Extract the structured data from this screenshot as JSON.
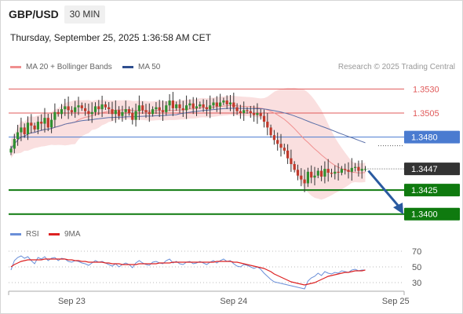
{
  "header": {
    "symbol": "GBP/USD",
    "timeframe": "30 MIN",
    "datetime": "Thursday, September 25, 2025 1:36:58 AM CET",
    "copyright": "Research © 2025 Trading Central"
  },
  "colors": {
    "resistance": "#e05a5a",
    "pivot": "#4a7bd0",
    "support": "#0f7a0f",
    "current": "#333333",
    "bollinger_fill": "#fadbdb",
    "ma20": "#f08f8f",
    "ma50": "#5a6fa8",
    "bull_candle": "#2f8f2f",
    "bear_candle": "#c0392b",
    "arrow": "#2a5aa0",
    "rsi": "#6a8fd8",
    "rsi_ma": "#dd2222"
  },
  "chart_data": [
    {
      "type": "candlestick",
      "legend": [
        {
          "label": "MA 20 + Bollinger Bands",
          "color": "#f08f8f"
        },
        {
          "label": "MA 50",
          "color": "#2f4f8f"
        }
      ],
      "ylim": [
        1.339,
        1.3545
      ],
      "x_ticks": [
        {
          "label": "Sep 23",
          "index": 18
        },
        {
          "label": "Sep 24",
          "index": 66
        },
        {
          "label": "Sep 25",
          "index": 114
        }
      ],
      "levels": [
        {
          "label": "1.3530",
          "value": 1.353,
          "kind": "resistance"
        },
        {
          "label": "1.3505",
          "value": 1.3505,
          "kind": "resistance"
        },
        {
          "label": "1.3480",
          "value": 1.348,
          "kind": "pivot"
        },
        {
          "label": "1.3447",
          "value": 1.3447,
          "kind": "current"
        },
        {
          "label": "1.3425",
          "value": 1.3425,
          "kind": "support"
        },
        {
          "label": "1.3400",
          "value": 1.34,
          "kind": "support"
        }
      ],
      "forecast_arrow": {
        "from": 1.3445,
        "to": 1.3403
      },
      "closes": [
        1.3468,
        1.3478,
        1.3485,
        1.349,
        1.3483,
        1.3495,
        1.3492,
        1.3488,
        1.3496,
        1.3494,
        1.35,
        1.349,
        1.3498,
        1.3506,
        1.3504,
        1.3509,
        1.3512,
        1.3508,
        1.3506,
        1.3511,
        1.3513,
        1.351,
        1.3507,
        1.3504,
        1.3506,
        1.3512,
        1.3509,
        1.3514,
        1.3511,
        1.3509,
        1.3504,
        1.3508,
        1.3502,
        1.3506,
        1.3509,
        1.3505,
        1.3498,
        1.3507,
        1.3513,
        1.3508,
        1.3506,
        1.3504,
        1.3509,
        1.3511,
        1.3508,
        1.3506,
        1.3513,
        1.3518,
        1.351,
        1.3514,
        1.351,
        1.3508,
        1.3513,
        1.3515,
        1.351,
        1.3512,
        1.3514,
        1.3511,
        1.3509,
        1.3513,
        1.3516,
        1.3512,
        1.3516,
        1.3518,
        1.3514,
        1.3516,
        1.3511,
        1.3507,
        1.3505,
        1.3508,
        1.3507,
        1.3505,
        1.3503,
        1.3505,
        1.3502,
        1.3496,
        1.349,
        1.3482,
        1.3477,
        1.3473,
        1.3469,
        1.3466,
        1.3458,
        1.3452,
        1.3446,
        1.344,
        1.3436,
        1.3432,
        1.3444,
        1.3438,
        1.344,
        1.3445,
        1.3439,
        1.3447,
        1.3443,
        1.3442,
        1.3444,
        1.3443,
        1.3447,
        1.3446,
        1.3444,
        1.3448,
        1.3449,
        1.3445,
        1.3447,
        1.3447
      ]
    },
    {
      "type": "line",
      "legend": [
        {
          "label": "RSI",
          "color": "#6a8fd8"
        },
        {
          "label": "9MA",
          "color": "#dd2222"
        }
      ],
      "ylim": [
        20,
        78
      ],
      "y_ticks": [
        70,
        50,
        30
      ],
      "series": [
        {
          "name": "RSI",
          "values": [
            46,
            58,
            62,
            64,
            61,
            63,
            58,
            54,
            62,
            60,
            63,
            58,
            61,
            62,
            58,
            61,
            60,
            57,
            56,
            58,
            57,
            55,
            54,
            52,
            55,
            58,
            56,
            57,
            55,
            53,
            51,
            54,
            50,
            53,
            55,
            53,
            49,
            55,
            58,
            55,
            53,
            52,
            56,
            57,
            55,
            54,
            58,
            60,
            55,
            57,
            54,
            53,
            56,
            57,
            54,
            55,
            57,
            55,
            53,
            56,
            58,
            55,
            58,
            60,
            57,
            58,
            54,
            51,
            50,
            53,
            52,
            50,
            48,
            50,
            47,
            42,
            38,
            34,
            31,
            30,
            29,
            28,
            27,
            26,
            25,
            24,
            23,
            22,
            32,
            36,
            38,
            42,
            39,
            44,
            42,
            41,
            43,
            42,
            45,
            44,
            43,
            46,
            47,
            45,
            46,
            46
          ]
        },
        {
          "name": "9MA",
          "values": [
            50,
            53,
            55,
            57,
            58,
            59,
            59,
            59,
            59,
            59,
            60,
            60,
            60,
            60,
            60,
            60,
            60,
            59,
            59,
            58,
            58,
            57,
            57,
            56,
            56,
            56,
            56,
            56,
            55,
            55,
            54,
            54,
            54,
            53,
            53,
            53,
            53,
            53,
            54,
            54,
            54,
            54,
            54,
            54,
            55,
            55,
            55,
            55,
            56,
            56,
            56,
            56,
            56,
            56,
            56,
            56,
            56,
            56,
            56,
            56,
            56,
            57,
            57,
            57,
            57,
            57,
            56,
            56,
            55,
            54,
            53,
            52,
            51,
            50,
            49,
            48,
            46,
            44,
            41,
            39,
            37,
            35,
            33,
            31,
            30,
            29,
            28,
            27,
            28,
            29,
            30,
            32,
            34,
            36,
            38,
            39,
            40,
            41,
            42,
            43,
            43,
            44,
            45,
            45,
            45,
            46
          ]
        }
      ]
    }
  ]
}
